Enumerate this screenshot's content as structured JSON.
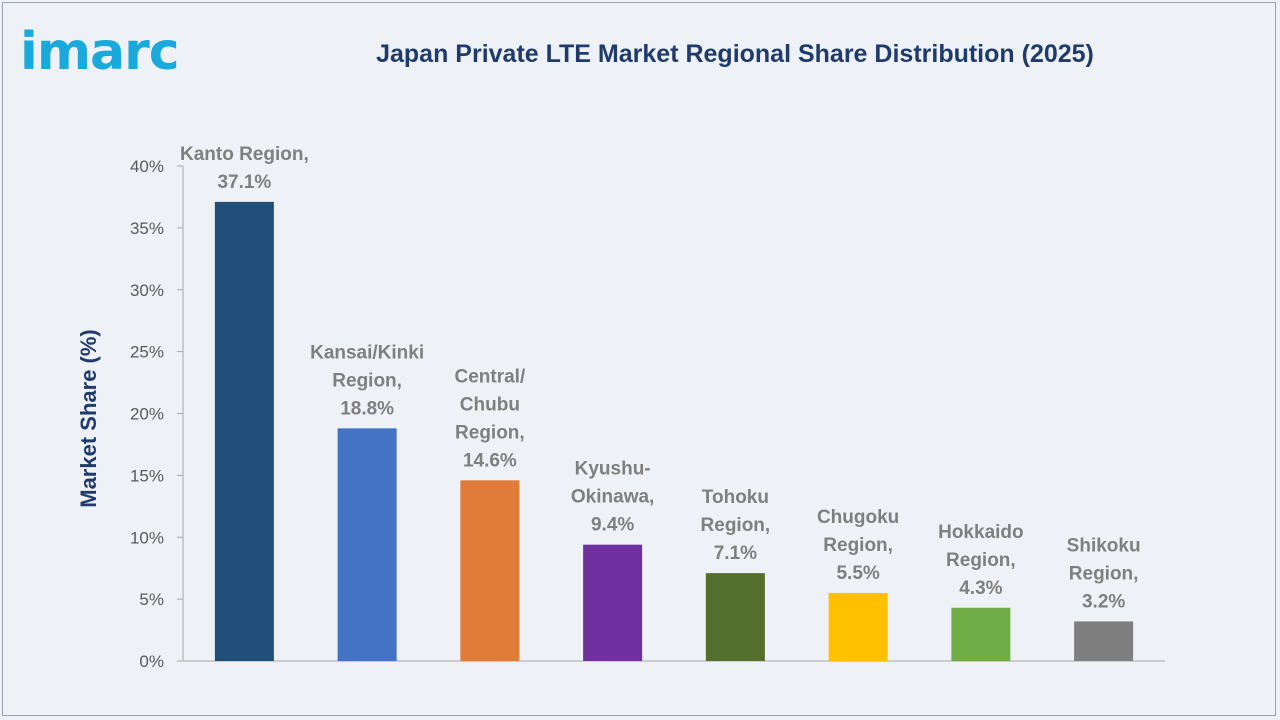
{
  "brand": {
    "logo_text": "imarc",
    "logo_color": "#1aa9dc"
  },
  "colors": {
    "title": "#1f3b6b",
    "axis_text": "#595959",
    "label_text": "#7f7f7f",
    "axis_line": "#a6a6a6"
  },
  "chart_data": {
    "type": "bar",
    "title": "Japan Private LTE Market Regional Share Distribution (2025)",
    "xlabel": "",
    "ylabel": "Market Share (%)",
    "ylim": [
      0,
      40
    ],
    "yticks": [
      "0%",
      "5%",
      "10%",
      "15%",
      "20%",
      "25%",
      "30%",
      "35%",
      "40%"
    ],
    "ytick_values": [
      0,
      5,
      10,
      15,
      20,
      25,
      30,
      35,
      40
    ],
    "grid": false,
    "categories": [
      "Kanto Region",
      "Kansai/Kinki Region",
      "Central/ Chubu Region",
      "Kyushu-Okinawa",
      "Tohoku Region",
      "Chugoku Region",
      "Hokkaido Region",
      "Shikoku Region"
    ],
    "values": [
      37.1,
      18.8,
      14.6,
      9.4,
      7.1,
      5.5,
      4.3,
      3.2
    ],
    "colors": [
      "#1f4e79",
      "#4472c4",
      "#e07b39",
      "#7030a0",
      "#546f2d",
      "#ffc000",
      "#70ad47",
      "#7f7f7f"
    ],
    "data_labels": [
      [
        "Kanto Region,",
        "37.1%"
      ],
      [
        "Kansai/Kinki",
        "Region,",
        "18.8%"
      ],
      [
        "Central/",
        "Chubu",
        "Region,",
        "14.6%"
      ],
      [
        "Kyushu-",
        "Okinawa,",
        "9.4%"
      ],
      [
        "Tohoku",
        "Region,",
        "7.1%"
      ],
      [
        "Chugoku",
        "Region,",
        "5.5%"
      ],
      [
        "Hokkaido",
        "Region,",
        "4.3%"
      ],
      [
        "Shikoku",
        "Region,",
        "3.2%"
      ]
    ]
  }
}
